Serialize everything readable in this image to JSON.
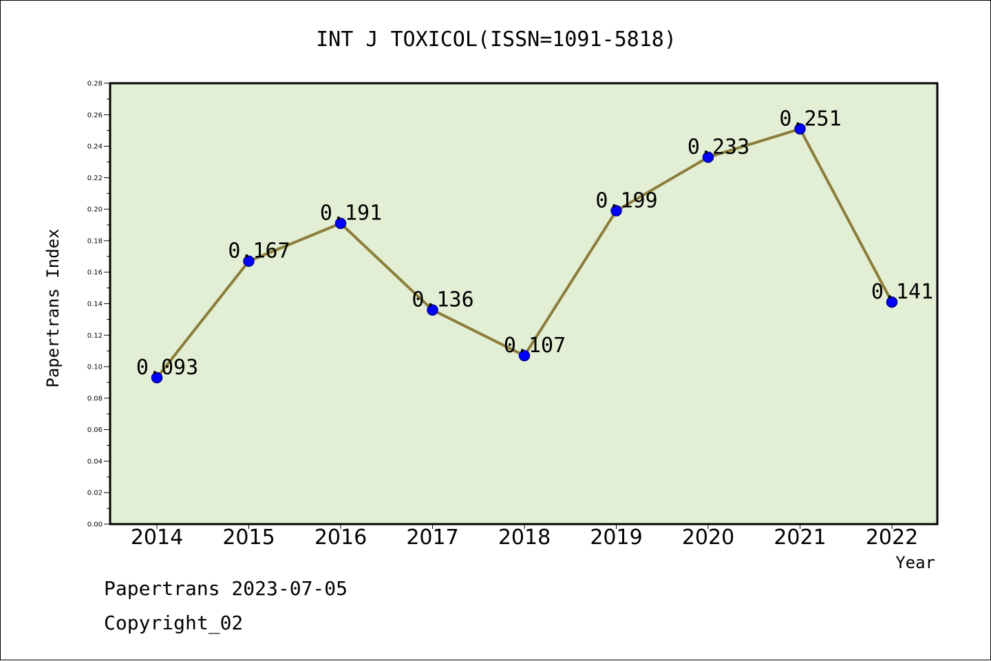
{
  "chart_data": {
    "type": "line",
    "title": "INT J TOXICOL(ISSN=1091-5818)",
    "xlabel": "Year",
    "ylabel": "Papertrans Index",
    "categories": [
      "2014",
      "2015",
      "2016",
      "2017",
      "2018",
      "2019",
      "2020",
      "2021",
      "2022"
    ],
    "series": [
      {
        "values": [
          0.093,
          0.167,
          0.191,
          0.136,
          0.107,
          0.199,
          0.233,
          0.251,
          0.141
        ],
        "data_labels": [
          "0.093",
          "0.167",
          "0.191",
          "0.136",
          "0.107",
          "0.199",
          "0.233",
          "0.251",
          "0.141"
        ]
      }
    ],
    "ylim": [
      0,
      0.28
    ],
    "yticks": [
      "0.00",
      "0.02",
      "0.04",
      "0.06",
      "0.08",
      "0.10",
      "0.12",
      "0.14",
      "0.16",
      "0.18",
      "0.20",
      "0.22",
      "0.24",
      "0.26",
      "0.28"
    ],
    "grid": false,
    "legend": "none",
    "colors": {
      "plot_background": "#e2efd4",
      "line": "#8b7d3a",
      "marker": "#0000ff",
      "axis": "#000000"
    }
  },
  "footer": {
    "source": "Papertrans 2023-07-05",
    "copyright": "Copyright_02"
  }
}
